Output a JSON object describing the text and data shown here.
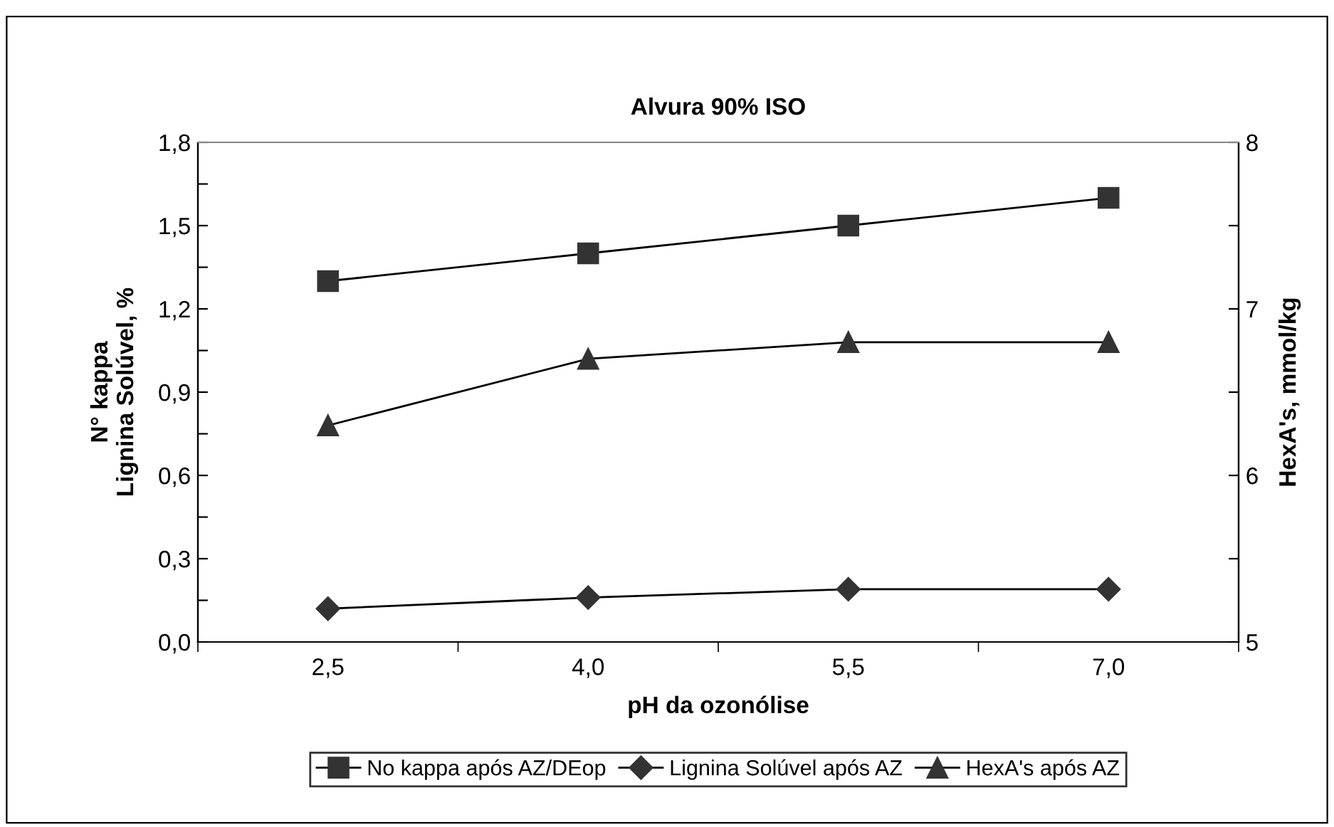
{
  "chart_data": {
    "type": "line",
    "title": "Alvura 90% ISO",
    "xlabel": "pH da ozonólise",
    "ylabel": "N° kappa\nLignina Solúvel, %",
    "y2label": "HexA's, mmol/kg",
    "categories": [
      "2,5",
      "4,0",
      "5,5",
      "7,0"
    ],
    "series": [
      {
        "name": "No kappa após AZ/DEop",
        "color": "#333333",
        "marker": "square",
        "values": [
          1.3,
          1.4,
          1.5,
          1.6
        ]
      },
      {
        "name": "Lignina Solúvel após AZ",
        "color": "#333333",
        "marker": "diamond",
        "values": [
          0.12,
          0.16,
          0.19,
          0.19
        ]
      },
      {
        "name": "HexA's após AZ",
        "color": "#333333",
        "marker": "triangle",
        "axis": "y2",
        "values": [
          6.3,
          6.7,
          6.8,
          6.8
        ]
      }
    ],
    "ylim": [
      0,
      1.8
    ],
    "yticks": [
      {
        "value": 0,
        "label": "0,0"
      },
      {
        "value": 0.15,
        "label": null
      },
      {
        "value": 0.3,
        "label": "0,3"
      },
      {
        "value": 0.45,
        "label": null
      },
      {
        "value": 0.6,
        "label": "0,6"
      },
      {
        "value": 0.75,
        "label": null
      },
      {
        "value": 0.9,
        "label": "0,9"
      },
      {
        "value": 1.05,
        "label": null
      },
      {
        "value": 1.2,
        "label": "1,2"
      },
      {
        "value": 1.35,
        "label": null
      },
      {
        "value": 1.5,
        "label": "1,5"
      },
      {
        "value": 1.65,
        "label": null
      },
      {
        "value": 1.8,
        "label": "1,8"
      }
    ],
    "y2lim": [
      5,
      8
    ],
    "y2ticks": [
      5,
      {
        "value": 5.5,
        "label": null
      },
      6,
      {
        "value": 6.5,
        "label": null
      },
      7,
      {
        "value": 7.5,
        "label": null
      },
      8
    ],
    "grid": false,
    "legend": "bottom",
    "line_style": "solid"
  }
}
